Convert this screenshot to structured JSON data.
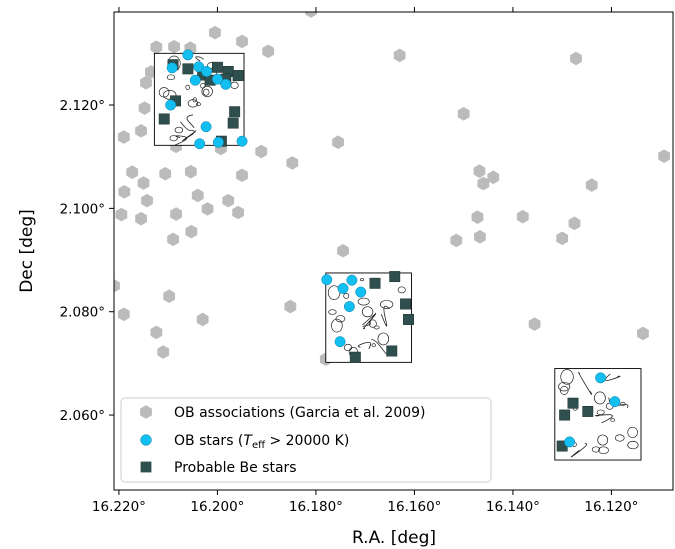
{
  "chart_data": {
    "type": "scatter",
    "xlabel": "R.A. [deg]",
    "ylabel": "Dec [deg]",
    "xlim": [
      16.221,
      16.1075
    ],
    "ylim": [
      2.0455,
      2.138
    ],
    "x_ticks": [
      16.22,
      16.2,
      16.18,
      16.16,
      16.14,
      16.12
    ],
    "x_tick_labels": [
      "16.220°",
      "16.200°",
      "16.180°",
      "16.160°",
      "16.140°",
      "16.120°"
    ],
    "y_ticks": [
      2.06,
      2.08,
      2.1,
      2.12
    ],
    "y_tick_labels": [
      "2.060°",
      "2.080°",
      "2.100°",
      "2.120°"
    ],
    "grid": false,
    "legend_position": "lower-left",
    "colors": {
      "ob_assoc": "#bbbbbb",
      "ob_stars": "#12bff0",
      "be_stars": "#2f4f4f",
      "contour": "#222222"
    },
    "series": [
      {
        "name": "OB associations (Garcia et al. 2009)",
        "marker": "hexagon",
        "points": [
          [
            16.2124,
            2.1312
          ],
          [
            16.2088,
            2.1313
          ],
          [
            16.2055,
            2.131
          ],
          [
            16.2005,
            2.134
          ],
          [
            16.195,
            2.1323
          ],
          [
            16.1897,
            2.1304
          ],
          [
            16.163,
            2.1296
          ],
          [
            16.1272,
            2.129
          ],
          [
            16.2135,
            2.1264
          ],
          [
            16.2148,
            2.1194
          ],
          [
            16.2145,
            2.1243
          ],
          [
            16.2087,
            2.1287
          ],
          [
            16.196,
            2.1277
          ],
          [
            16.2058,
            2.1166
          ],
          [
            16.1999,
            2.1259
          ],
          [
            16.2009,
            2.1158
          ],
          [
            16.2084,
            2.112
          ],
          [
            16.2155,
            2.115
          ],
          [
            16.1993,
            2.1116
          ],
          [
            16.1911,
            2.111
          ],
          [
            16.1848,
            2.1088
          ],
          [
            16.1755,
            2.1128
          ],
          [
            16.15,
            2.1183
          ],
          [
            16.1468,
            2.1072
          ],
          [
            16.1093,
            2.1101
          ],
          [
            16.1062,
            2.1152
          ],
          [
            16.2189,
            2.1032
          ],
          [
            16.2143,
            2.1015
          ],
          [
            16.215,
            2.1049
          ],
          [
            16.2106,
            2.1067
          ],
          [
            16.2054,
            2.1071
          ],
          [
            16.195,
            2.1064
          ],
          [
            16.1958,
            2.0992
          ],
          [
            16.202,
            2.0999
          ],
          [
            16.204,
            2.1025
          ],
          [
            16.1978,
            2.1015
          ],
          [
            16.2084,
            2.0989
          ],
          [
            16.209,
            2.094
          ],
          [
            16.2053,
            2.0955
          ],
          [
            16.2173,
            2.107
          ],
          [
            16.2195,
            2.0988
          ],
          [
            16.2155,
            2.098
          ],
          [
            16.144,
            2.106
          ],
          [
            16.138,
            2.0984
          ],
          [
            16.1275,
            2.0971
          ],
          [
            16.124,
            2.1045
          ],
          [
            16.146,
            2.1048
          ],
          [
            16.1472,
            2.0983
          ],
          [
            16.1515,
            2.0938
          ],
          [
            16.1467,
            2.0945
          ],
          [
            16.13,
            2.0942
          ],
          [
            16.221,
            2.085
          ],
          [
            16.219,
            2.0795
          ],
          [
            16.2098,
            2.083
          ],
          [
            16.203,
            2.0785
          ],
          [
            16.1852,
            2.081
          ],
          [
            16.1745,
            2.0918
          ],
          [
            16.1356,
            2.0776
          ],
          [
            16.1136,
            2.0758
          ],
          [
            16.2124,
            2.076
          ],
          [
            16.211,
            2.0722
          ],
          [
            16.178,
            2.0708
          ],
          [
            16.181,
            2.1382
          ],
          [
            16.219,
            2.1138
          ]
        ]
      },
      {
        "name": "OB stars (T_eff > 20000 K)",
        "marker": "circle",
        "points": [
          [
            16.2092,
            2.1272
          ],
          [
            16.206,
            2.1297
          ],
          [
            16.2038,
            2.1274
          ],
          [
            16.2022,
            2.1265
          ],
          [
            16.2,
            2.125
          ],
          [
            16.2045,
            2.1248
          ],
          [
            16.1983,
            2.124
          ],
          [
            16.2095,
            2.12
          ],
          [
            16.2023,
            2.1158
          ],
          [
            16.1998,
            2.1128
          ],
          [
            16.195,
            2.113
          ],
          [
            16.2036,
            2.1125
          ],
          [
            16.1778,
            2.0862
          ],
          [
            16.1745,
            2.0845
          ],
          [
            16.1727,
            2.0861
          ],
          [
            16.1732,
            2.081
          ],
          [
            16.1709,
            2.0838
          ],
          [
            16.1751,
            2.0742
          ],
          [
            16.1222,
            2.0672
          ],
          [
            16.1193,
            2.0626
          ],
          [
            16.1285,
            2.0548
          ]
        ]
      },
      {
        "name": "Probable Be stars",
        "marker": "square",
        "points": [
          [
            16.209,
            2.1278
          ],
          [
            16.206,
            2.127
          ],
          [
            16.203,
            2.1258
          ],
          [
            16.2,
            2.1273
          ],
          [
            16.1978,
            2.1265
          ],
          [
            16.1958,
            2.1257
          ],
          [
            16.2015,
            2.1248
          ],
          [
            16.1983,
            2.125
          ],
          [
            16.1965,
            2.1187
          ],
          [
            16.1968,
            2.1165
          ],
          [
            16.2085,
            2.1208
          ],
          [
            16.2108,
            2.1173
          ],
          [
            16.1992,
            2.113
          ],
          [
            16.168,
            2.0855
          ],
          [
            16.164,
            2.0868
          ],
          [
            16.1618,
            2.0815
          ],
          [
            16.1612,
            2.0785
          ],
          [
            16.1646,
            2.0724
          ],
          [
            16.172,
            2.0712
          ],
          [
            16.1278,
            2.0623
          ],
          [
            16.1295,
            2.06
          ],
          [
            16.1248,
            2.0607
          ],
          [
            16.13,
            2.054
          ]
        ]
      }
    ],
    "fields": [
      {
        "x0": 16.2128,
        "x1": 16.1946,
        "y0": 2.1122,
        "y1": 2.13
      },
      {
        "x0": 16.178,
        "x1": 16.1606,
        "y0": 2.0702,
        "y1": 2.0875
      },
      {
        "x0": 16.1315,
        "x1": 16.114,
        "y0": 2.0513,
        "y1": 2.069
      }
    ]
  }
}
